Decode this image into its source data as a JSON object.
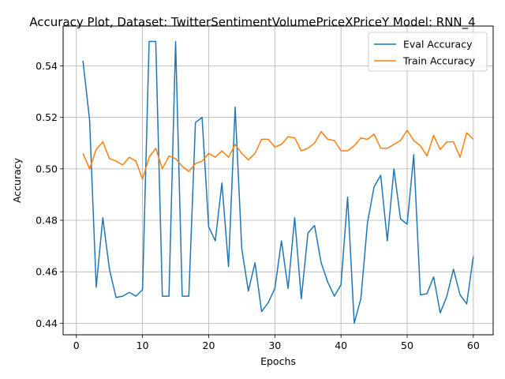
{
  "chart_data": {
    "type": "line",
    "title": "Accuracy Plot, Dataset: TwitterSentimentVolumePriceXPriceY Model: RNN_4",
    "xlabel": "Epochs",
    "ylabel": "Accuracy",
    "xlim": [
      -2,
      63
    ],
    "ylim": [
      0.4355,
      0.5555
    ],
    "xticks": [
      0,
      10,
      20,
      30,
      40,
      50,
      60
    ],
    "yticks": [
      0.44,
      0.46,
      0.48,
      0.5,
      0.52,
      0.54
    ],
    "ytick_labels": [
      "0.44",
      "0.46",
      "0.48",
      "0.50",
      "0.52",
      "0.54"
    ],
    "grid": true,
    "legend_position": "top-right",
    "x": [
      1,
      2,
      3,
      4,
      5,
      6,
      7,
      8,
      9,
      10,
      11,
      12,
      13,
      14,
      15,
      16,
      17,
      18,
      19,
      20,
      21,
      22,
      23,
      24,
      25,
      26,
      27,
      28,
      29,
      30,
      31,
      32,
      33,
      34,
      35,
      36,
      37,
      38,
      39,
      40,
      41,
      42,
      43,
      44,
      45,
      46,
      47,
      48,
      49,
      50,
      51,
      52,
      53,
      54,
      55,
      56,
      57,
      58,
      59,
      60
    ],
    "series": [
      {
        "name": "Eval Accuracy",
        "color": "#1f77b4",
        "values": [
          0.542,
          0.519,
          0.454,
          0.481,
          0.461,
          0.45,
          0.4505,
          0.452,
          0.4505,
          0.453,
          0.5495,
          0.5495,
          0.4505,
          0.4505,
          0.5495,
          0.4505,
          0.4505,
          0.518,
          0.52,
          0.4775,
          0.472,
          0.4945,
          0.462,
          0.524,
          0.469,
          0.4525,
          0.4635,
          0.4445,
          0.448,
          0.4535,
          0.472,
          0.4535,
          0.481,
          0.4495,
          0.475,
          0.478,
          0.4635,
          0.456,
          0.4505,
          0.455,
          0.489,
          0.44,
          0.4495,
          0.479,
          0.493,
          0.4975,
          0.472,
          0.5,
          0.4805,
          0.4785,
          0.5055,
          0.451,
          0.4515,
          0.458,
          0.444,
          0.4505,
          0.461,
          0.451,
          0.4475,
          0.466
        ]
      },
      {
        "name": "Train Accuracy",
        "color": "#ff7f0e",
        "values": [
          0.506,
          0.5,
          0.5075,
          0.5105,
          0.504,
          0.503,
          0.5015,
          0.5045,
          0.503,
          0.496,
          0.5045,
          0.508,
          0.5,
          0.505,
          0.504,
          0.501,
          0.499,
          0.502,
          0.503,
          0.506,
          0.5045,
          0.507,
          0.5045,
          0.5095,
          0.506,
          0.5035,
          0.506,
          0.5115,
          0.5115,
          0.5085,
          0.5095,
          0.5125,
          0.512,
          0.507,
          0.508,
          0.51,
          0.5145,
          0.5115,
          0.511,
          0.507,
          0.507,
          0.509,
          0.512,
          0.5115,
          0.5135,
          0.508,
          0.508,
          0.5095,
          0.511,
          0.515,
          0.511,
          0.509,
          0.505,
          0.513,
          0.5075,
          0.5105,
          0.5105,
          0.5045,
          0.514,
          0.5115
        ]
      }
    ]
  }
}
